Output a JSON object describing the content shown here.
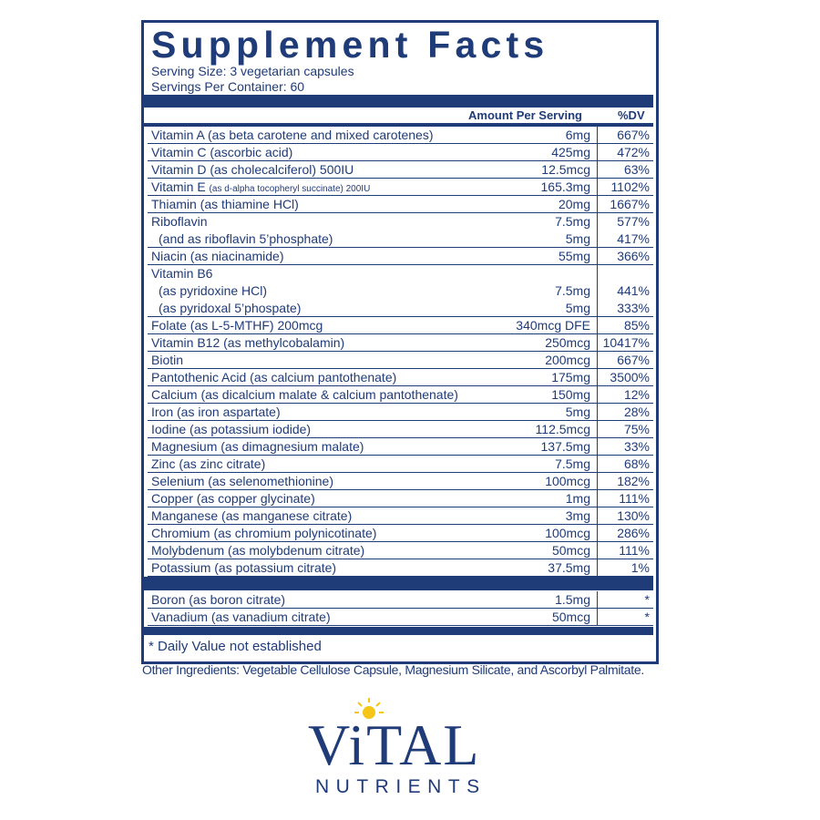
{
  "panel": {
    "title": "Supplement Facts",
    "serving_size": "Serving Size: 3 vegetarian capsules",
    "servings_per_container": "Servings Per Container: 60",
    "header": {
      "amount": "Amount Per Serving",
      "dv": "%DV"
    },
    "groups": [
      {
        "lines": [
          {
            "name": "Vitamin A (as beta carotene and mixed carotenes)",
            "amount": "6mg",
            "dv": "667%"
          }
        ]
      },
      {
        "lines": [
          {
            "name": "Vitamin C (ascorbic acid)",
            "amount": "425mg",
            "dv": "472%"
          }
        ]
      },
      {
        "lines": [
          {
            "name": "Vitamin D (as cholecalciferol) 500IU",
            "amount": "12.5mcg",
            "dv": "63%"
          }
        ]
      },
      {
        "lines": [
          {
            "name": "Vitamin E",
            "detail": "(as d-alpha tocopheryl succinate) 200IU",
            "amount": "165.3mg",
            "dv": "1102%"
          }
        ]
      },
      {
        "lines": [
          {
            "name": "Thiamin (as thiamine HCl)",
            "amount": "20mg",
            "dv": "1667%"
          }
        ]
      },
      {
        "lines": [
          {
            "name": "Riboflavin",
            "amount": "7.5mg",
            "dv": "577%"
          },
          {
            "name": "(and as riboflavin 5’phosphate)",
            "amount": "5mg",
            "dv": "417%"
          }
        ]
      },
      {
        "lines": [
          {
            "name": "Niacin (as niacinamide)",
            "amount": "55mg",
            "dv": "366%"
          }
        ]
      },
      {
        "lines": [
          {
            "name": "Vitamin B6"
          },
          {
            "name": "(as pyridoxine HCl)",
            "amount": "7.5mg",
            "dv": "441%"
          },
          {
            "name": "(as pyridoxal 5’phospate)",
            "amount": "5mg",
            "dv": "333%"
          }
        ]
      },
      {
        "lines": [
          {
            "name": "Folate (as L-5-MTHF) 200mcg",
            "amount": "340mcg DFE",
            "dv": "85%"
          }
        ]
      },
      {
        "lines": [
          {
            "name": "Vitamin B12 (as methylcobalamin)",
            "amount": "250mcg",
            "dv": "10417%"
          }
        ]
      },
      {
        "lines": [
          {
            "name": "Biotin",
            "amount": "200mcg",
            "dv": "667%"
          }
        ]
      },
      {
        "lines": [
          {
            "name": "Pantothenic Acid (as calcium pantothenate)",
            "amount": "175mg",
            "dv": "3500%"
          }
        ]
      },
      {
        "lines": [
          {
            "name": "Calcium (as dicalcium malate & calcium pantothenate)",
            "amount": "150mg",
            "dv": "12%"
          }
        ]
      },
      {
        "lines": [
          {
            "name": "Iron (as iron aspartate)",
            "amount": "5mg",
            "dv": "28%"
          }
        ]
      },
      {
        "lines": [
          {
            "name": "Iodine (as potassium iodide)",
            "amount": "112.5mcg",
            "dv": "75%"
          }
        ]
      },
      {
        "lines": [
          {
            "name": "Magnesium (as dimagnesium malate)",
            "amount": "137.5mg",
            "dv": "33%"
          }
        ]
      },
      {
        "lines": [
          {
            "name": "Zinc (as zinc citrate)",
            "amount": "7.5mg",
            "dv": "68%"
          }
        ]
      },
      {
        "lines": [
          {
            "name": "Selenium (as selenomethionine)",
            "amount": "100mcg",
            "dv": "182%"
          }
        ]
      },
      {
        "lines": [
          {
            "name": "Copper (as copper glycinate)",
            "amount": "1mg",
            "dv": "111%"
          }
        ]
      },
      {
        "lines": [
          {
            "name": "Manganese (as manganese citrate)",
            "amount": "3mg",
            "dv": "130%"
          }
        ]
      },
      {
        "lines": [
          {
            "name": "Chromium (as chromium polynicotinate)",
            "amount": "100mcg",
            "dv": "286%"
          }
        ]
      },
      {
        "lines": [
          {
            "name": "Molybdenum (as molybdenum citrate)",
            "amount": "50mcg",
            "dv": "111%"
          }
        ]
      },
      {
        "lines": [
          {
            "name": "Potassium (as potassium citrate)",
            "amount": "37.5mg",
            "dv": "1%"
          }
        ]
      }
    ],
    "other_groups": [
      {
        "lines": [
          {
            "name": "Boron (as boron citrate)",
            "amount": "1.5mg",
            "dv": "*"
          }
        ]
      },
      {
        "lines": [
          {
            "name": "Vanadium (as vanadium citrate)",
            "amount": "50mcg",
            "dv": "*"
          }
        ]
      }
    ],
    "footnote": "* Daily Value not established"
  },
  "other_ingredients": "Other Ingredients: Vegetable Cellulose Capsule, Magnesium Silicate, and Ascorbyl Palmitate.",
  "logo": {
    "brand": "ViTAL",
    "sub": "NUTRIENTS"
  }
}
